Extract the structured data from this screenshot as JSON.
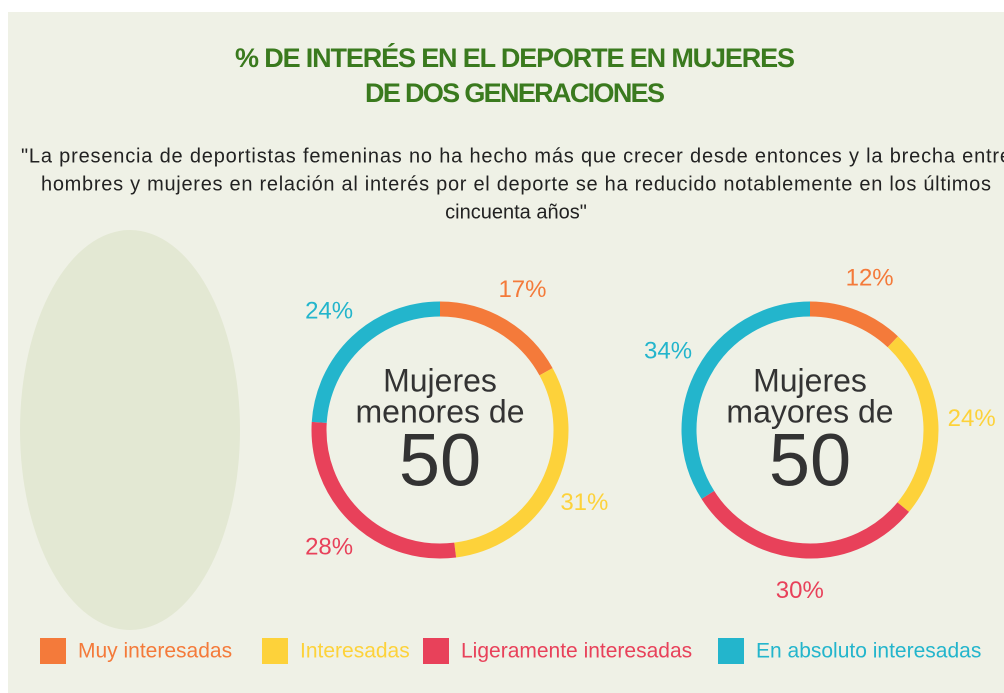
{
  "header": {
    "title": [
      "% DE INTERÉS EN EL DEPORTE EN MUJERES",
      "DE DOS GENERACIONES"
    ],
    "quote": [
      "\"La presencia de deportistas femeninas no ha hecho más que crecer desde entonces y la brecha entre",
      "hombres y mujeres en relación al interés por el deporte se ha reducido notablemente en los últimos",
      "cincuenta años\""
    ]
  },
  "chart_data": [
    {
      "type": "donut",
      "center_label": [
        "Mujeres",
        "menores de",
        "50"
      ],
      "categories": [
        "Muy interesadas",
        "Interesadas",
        "Ligeramente interesadas",
        "En absoluto interesadas"
      ],
      "values": [
        17,
        31,
        28,
        24
      ],
      "value_labels": [
        "17%",
        "31%",
        "28%",
        "24%"
      ],
      "colors": [
        "#f47a3a",
        "#fdd23a",
        "#e8415a",
        "#23b5cc"
      ]
    },
    {
      "type": "donut",
      "center_label": [
        "Mujeres",
        "mayores de",
        "50"
      ],
      "categories": [
        "Muy interesadas",
        "Interesadas",
        "Ligeramente interesadas",
        "En absoluto interesadas"
      ],
      "values": [
        12,
        24,
        30,
        34
      ],
      "value_labels": [
        "12%",
        "24%",
        "30%",
        "34%"
      ],
      "colors": [
        "#f47a3a",
        "#fdd23a",
        "#e8415a",
        "#23b5cc"
      ]
    }
  ]
}
